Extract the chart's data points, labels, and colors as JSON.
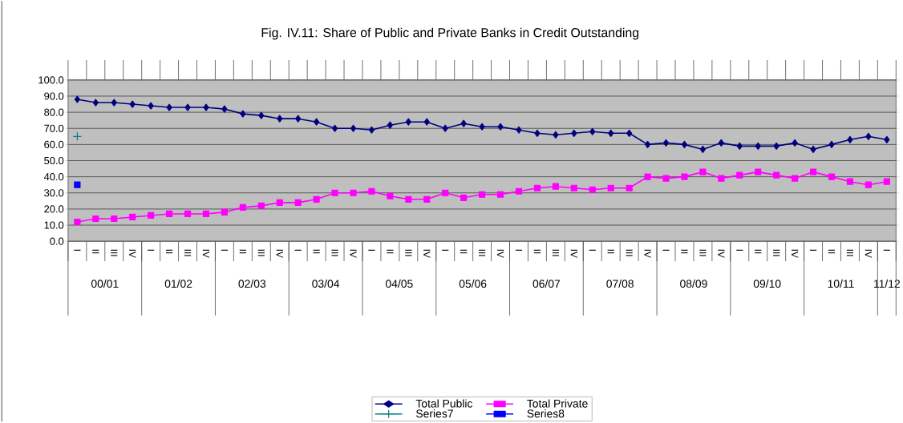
{
  "chart_data": {
    "type": "line",
    "title": "Fig. IV.11: Share of Public and Private Banks in Credit Outstanding",
    "categories": [
      "I",
      "II",
      "III",
      "IV",
      "I",
      "II",
      "III",
      "IV",
      "I",
      "II",
      "III",
      "IV",
      "I",
      "II",
      "III",
      "IV",
      "I",
      "II",
      "III",
      "IV",
      "I",
      "II",
      "III",
      "IV",
      "I",
      "II",
      "III",
      "IV",
      "I",
      "II",
      "III",
      "IV",
      "I",
      "II",
      "III",
      "IV",
      "I",
      "II",
      "III",
      "IV",
      "I",
      "II",
      "III",
      "IV",
      "I"
    ],
    "series": [
      {
        "name": "Total Public",
        "color": "#000080",
        "marker": "diamond",
        "values": [
          88,
          86,
          86,
          85,
          84,
          83,
          83,
          83,
          82,
          79,
          78,
          76,
          76,
          74,
          70,
          70,
          69,
          72,
          74,
          74,
          70,
          73,
          71,
          71,
          69,
          67,
          66,
          67,
          68,
          67,
          67,
          60,
          61,
          60,
          57,
          61,
          59,
          59,
          59,
          61,
          57,
          60,
          63,
          65,
          63
        ]
      },
      {
        "name": "Total Private",
        "color": "#ff00ff",
        "marker": "square",
        "values": [
          12,
          14,
          14,
          15,
          16,
          17,
          17,
          17,
          18,
          21,
          22,
          24,
          24,
          26,
          30,
          30,
          31,
          28,
          26,
          26,
          30,
          27,
          29,
          29,
          31,
          33,
          34,
          33,
          32,
          33,
          33,
          40,
          39,
          40,
          43,
          39,
          41,
          43,
          41,
          39,
          43,
          40,
          37,
          35,
          37
        ]
      },
      {
        "name": "Series7",
        "color": "#008080",
        "marker": "cross",
        "values": [
          65,
          null,
          null,
          null,
          null,
          null,
          null,
          null,
          null,
          null,
          null,
          null,
          null,
          null,
          null,
          null,
          null,
          null,
          null,
          null,
          null,
          null,
          null,
          null,
          null,
          null,
          null,
          null,
          null,
          null,
          null,
          null,
          null,
          null,
          null,
          null,
          null,
          null,
          null,
          null,
          null,
          null,
          null,
          null,
          null
        ]
      },
      {
        "name": "Series8",
        "color": "#0000ff",
        "marker": "square",
        "values": [
          35,
          null,
          null,
          null,
          null,
          null,
          null,
          null,
          null,
          null,
          null,
          null,
          null,
          null,
          null,
          null,
          null,
          null,
          null,
          null,
          null,
          null,
          null,
          null,
          null,
          null,
          null,
          null,
          null,
          null,
          null,
          null,
          null,
          null,
          null,
          null,
          null,
          null,
          null,
          null,
          null,
          null,
          null,
          null,
          null
        ]
      }
    ],
    "annotations": [
      "00/01",
      "01/02",
      "02/03",
      "03/04",
      "04/05",
      "05/06",
      "06/07",
      "07/08",
      "08/09",
      "09/10",
      "10/11",
      "11/12"
    ],
    "ylim": [
      0,
      100
    ],
    "yticks": [
      {
        "value": 0,
        "label": "0.0"
      },
      {
        "value": 10,
        "label": "10.0"
      },
      {
        "value": 20,
        "label": "20.0"
      },
      {
        "value": 30,
        "label": "30.0"
      },
      {
        "value": 40,
        "label": "40.0"
      },
      {
        "value": 50,
        "label": "50.0"
      },
      {
        "value": 60,
        "label": "60.0"
      },
      {
        "value": 70,
        "label": "70.0"
      },
      {
        "value": 80,
        "label": "80.0"
      },
      {
        "value": 90,
        "label": "90.0"
      },
      {
        "value": 100,
        "label": "100.0"
      }
    ],
    "grid": "y",
    "legend": "bottom"
  }
}
